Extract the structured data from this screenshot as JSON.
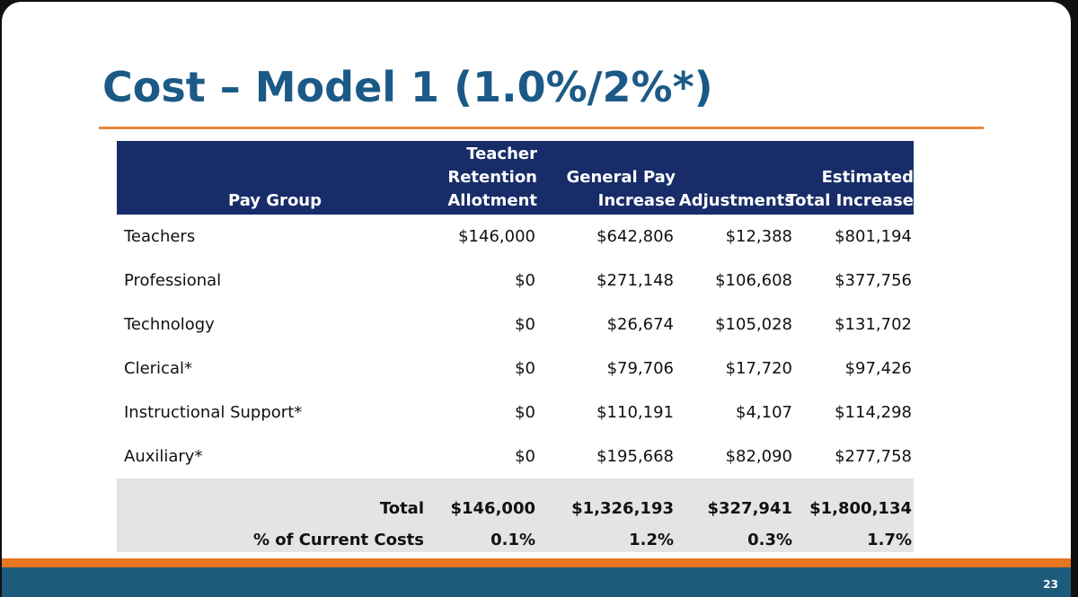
{
  "title": "Cost – Model 1 (1.0%/2%*)",
  "table": {
    "headers": [
      "Pay Group",
      "Teacher Retention Allotment",
      "General Pay Increase",
      "Adjustments",
      "Estimated Total Increase"
    ],
    "rows": [
      [
        "Teachers",
        "$146,000",
        "$642,806",
        "$12,388",
        "$801,194"
      ],
      [
        "Professional",
        "$0",
        "$271,148",
        "$106,608",
        "$377,756"
      ],
      [
        "Technology",
        "$0",
        "$26,674",
        "$105,028",
        "$131,702"
      ],
      [
        "Clerical*",
        "$0",
        "$79,706",
        "$17,720",
        "$97,426"
      ],
      [
        "Instructional Support*",
        "$0",
        "$110,191",
        "$4,107",
        "$114,298"
      ],
      [
        "Auxiliary*",
        "$0",
        "$195,668",
        "$82,090",
        "$277,758"
      ]
    ],
    "totals": [
      [
        "Total",
        "$146,000",
        "$1,326,193",
        "$327,941",
        "$1,800,134"
      ],
      [
        "% of Current Costs",
        "0.1%",
        "1.2%",
        "0.3%",
        "1.7%"
      ]
    ]
  },
  "page_number": "23"
}
